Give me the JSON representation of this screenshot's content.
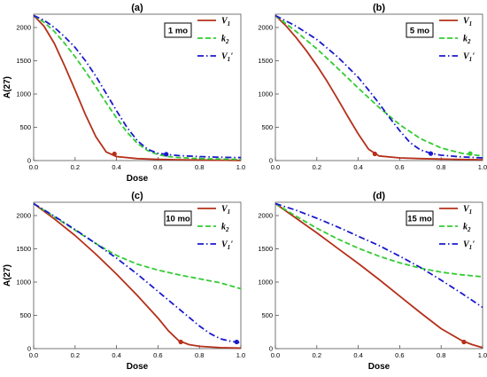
{
  "chart_data": [
    {
      "type": "line",
      "panel_label": "(a)",
      "time_label": "1 mo",
      "xlabel": "Dose",
      "ylabel": "A(27)",
      "xlim": [
        0.0,
        1.0
      ],
      "ylim": [
        0,
        2200
      ],
      "xticks": [
        "0.0",
        "0.2",
        "0.4",
        "0.6",
        "0.8",
        "1.0"
      ],
      "yticks": [
        "0",
        "500",
        "1000",
        "1500",
        "2000"
      ],
      "legend_position": "top-right",
      "series": [
        {
          "name": "V1",
          "color": "#b5301a",
          "dash": "solid",
          "x": [
            0.0,
            0.05,
            0.1,
            0.15,
            0.2,
            0.25,
            0.3,
            0.35,
            0.4,
            0.5,
            0.6,
            0.7,
            0.8,
            0.9,
            1.0
          ],
          "y": [
            2180,
            2020,
            1760,
            1420,
            1060,
            690,
            360,
            130,
            60,
            30,
            18,
            12,
            8,
            5,
            3
          ],
          "marker": {
            "x": 0.39,
            "y": 100
          }
        },
        {
          "name": "k2",
          "color": "#33cc33",
          "dash": "dashed",
          "x": [
            0.0,
            0.05,
            0.1,
            0.15,
            0.2,
            0.25,
            0.3,
            0.35,
            0.4,
            0.45,
            0.5,
            0.55,
            0.6,
            0.65,
            0.7,
            0.8,
            0.9,
            1.0
          ],
          "y": [
            2180,
            2080,
            1940,
            1760,
            1560,
            1340,
            1110,
            870,
            640,
            430,
            260,
            150,
            90,
            60,
            45,
            30,
            22,
            18
          ],
          "marker": null
        },
        {
          "name": "V1'",
          "color": "#1a1acc",
          "dash": "dashdot",
          "x": [
            0.0,
            0.05,
            0.1,
            0.15,
            0.2,
            0.25,
            0.3,
            0.35,
            0.4,
            0.45,
            0.5,
            0.55,
            0.6,
            0.65,
            0.7,
            0.8,
            0.9,
            1.0
          ],
          "y": [
            2180,
            2110,
            2000,
            1860,
            1700,
            1500,
            1270,
            1010,
            750,
            500,
            300,
            170,
            110,
            90,
            75,
            60,
            50,
            45
          ],
          "marker": {
            "x": 0.64,
            "y": 95
          }
        }
      ]
    },
    {
      "type": "line",
      "panel_label": "(b)",
      "time_label": "5 mo",
      "xlabel": "",
      "ylabel": "",
      "xlim": [
        0.0,
        1.0
      ],
      "ylim": [
        0,
        2200
      ],
      "xticks": [
        "0.0",
        "0.2",
        "0.4",
        "0.6",
        "0.8",
        "1.0"
      ],
      "yticks": [
        "0",
        "500",
        "1000",
        "1500",
        "2000"
      ],
      "legend_position": "top-right",
      "series": [
        {
          "name": "V1",
          "color": "#b5301a",
          "dash": "solid",
          "x": [
            0.0,
            0.05,
            0.1,
            0.15,
            0.2,
            0.25,
            0.3,
            0.35,
            0.4,
            0.45,
            0.5,
            0.6,
            0.7,
            0.8,
            0.9,
            1.0
          ],
          "y": [
            2180,
            2030,
            1850,
            1650,
            1430,
            1190,
            930,
            660,
            400,
            170,
            70,
            40,
            30,
            22,
            16,
            12
          ],
          "marker": {
            "x": 0.48,
            "y": 100
          }
        },
        {
          "name": "k2",
          "color": "#33cc33",
          "dash": "dashed",
          "x": [
            0.0,
            0.1,
            0.2,
            0.3,
            0.4,
            0.5,
            0.6,
            0.7,
            0.8,
            0.9,
            1.0
          ],
          "y": [
            2180,
            1940,
            1680,
            1390,
            1090,
            800,
            540,
            330,
            190,
            110,
            70
          ],
          "marker": {
            "x": 0.94,
            "y": 105
          }
        },
        {
          "name": "V1'",
          "color": "#1a1acc",
          "dash": "dashdot",
          "x": [
            0.0,
            0.1,
            0.2,
            0.3,
            0.4,
            0.45,
            0.5,
            0.55,
            0.6,
            0.65,
            0.7,
            0.75,
            0.8,
            0.9,
            1.0
          ],
          "y": [
            2180,
            2020,
            1820,
            1560,
            1250,
            1060,
            860,
            650,
            450,
            270,
            160,
            110,
            80,
            55,
            40
          ],
          "marker": {
            "x": 0.75,
            "y": 105
          }
        }
      ]
    },
    {
      "type": "line",
      "panel_label": "(c)",
      "time_label": "10 mo",
      "xlabel": "Dose",
      "ylabel": "A(27)",
      "xlim": [
        0.0,
        1.0
      ],
      "ylim": [
        0,
        2200
      ],
      "xticks": [
        "0.0",
        "0.2",
        "0.4",
        "0.6",
        "0.8",
        "1.0"
      ],
      "yticks": [
        "0",
        "500",
        "1000",
        "1500",
        "2000"
      ],
      "legend_position": "top-right",
      "series": [
        {
          "name": "V1",
          "color": "#b5301a",
          "dash": "solid",
          "x": [
            0.0,
            0.1,
            0.2,
            0.3,
            0.4,
            0.5,
            0.6,
            0.65,
            0.7,
            0.75,
            0.8,
            0.9,
            1.0
          ],
          "y": [
            2180,
            1950,
            1700,
            1420,
            1120,
            800,
            460,
            270,
            120,
            60,
            35,
            15,
            8
          ],
          "marker": {
            "x": 0.71,
            "y": 100
          }
        },
        {
          "name": "k2",
          "color": "#33cc33",
          "dash": "dashed",
          "x": [
            0.0,
            0.1,
            0.2,
            0.3,
            0.4,
            0.5,
            0.6,
            0.7,
            0.8,
            0.9,
            1.0
          ],
          "y": [
            2180,
            1980,
            1780,
            1580,
            1400,
            1270,
            1180,
            1110,
            1050,
            990,
            900
          ],
          "marker": null
        },
        {
          "name": "V1'",
          "color": "#1a1acc",
          "dash": "dashdot",
          "x": [
            0.0,
            0.1,
            0.2,
            0.3,
            0.4,
            0.5,
            0.6,
            0.7,
            0.8,
            0.85,
            0.9,
            0.95,
            1.0
          ],
          "y": [
            2180,
            1990,
            1790,
            1580,
            1360,
            1120,
            860,
            600,
            340,
            230,
            150,
            110,
            90
          ],
          "marker": {
            "x": 0.98,
            "y": 100
          }
        }
      ]
    },
    {
      "type": "line",
      "panel_label": "(d)",
      "time_label": "15 mo",
      "xlabel": "Dose",
      "ylabel": "",
      "xlim": [
        0.0,
        1.0
      ],
      "ylim": [
        0,
        2200
      ],
      "xticks": [
        "0.0",
        "0.2",
        "0.4",
        "0.6",
        "0.8",
        "1.0"
      ],
      "yticks": [
        "0",
        "500",
        "1000",
        "1500",
        "2000"
      ],
      "legend_position": "top-right",
      "series": [
        {
          "name": "V1",
          "color": "#b5301a",
          "dash": "solid",
          "x": [
            0.0,
            0.1,
            0.2,
            0.3,
            0.4,
            0.5,
            0.6,
            0.7,
            0.8,
            0.9,
            0.95,
            1.0
          ],
          "y": [
            2180,
            1960,
            1740,
            1510,
            1280,
            1040,
            790,
            540,
            300,
            120,
            60,
            15
          ],
          "marker": {
            "x": 0.91,
            "y": 100
          }
        },
        {
          "name": "k2",
          "color": "#33cc33",
          "dash": "dashed",
          "x": [
            0.0,
            0.1,
            0.2,
            0.3,
            0.4,
            0.5,
            0.6,
            0.7,
            0.8,
            0.9,
            1.0
          ],
          "y": [
            2180,
            1990,
            1810,
            1650,
            1510,
            1390,
            1290,
            1210,
            1150,
            1110,
            1080
          ],
          "marker": null
        },
        {
          "name": "V1'",
          "color": "#1a1acc",
          "dash": "dashdot",
          "x": [
            0.0,
            0.1,
            0.2,
            0.3,
            0.4,
            0.5,
            0.6,
            0.7,
            0.8,
            0.9,
            1.0
          ],
          "y": [
            2180,
            2080,
            1960,
            1830,
            1690,
            1550,
            1390,
            1220,
            1030,
            830,
            620
          ],
          "marker": null
        }
      ]
    }
  ]
}
